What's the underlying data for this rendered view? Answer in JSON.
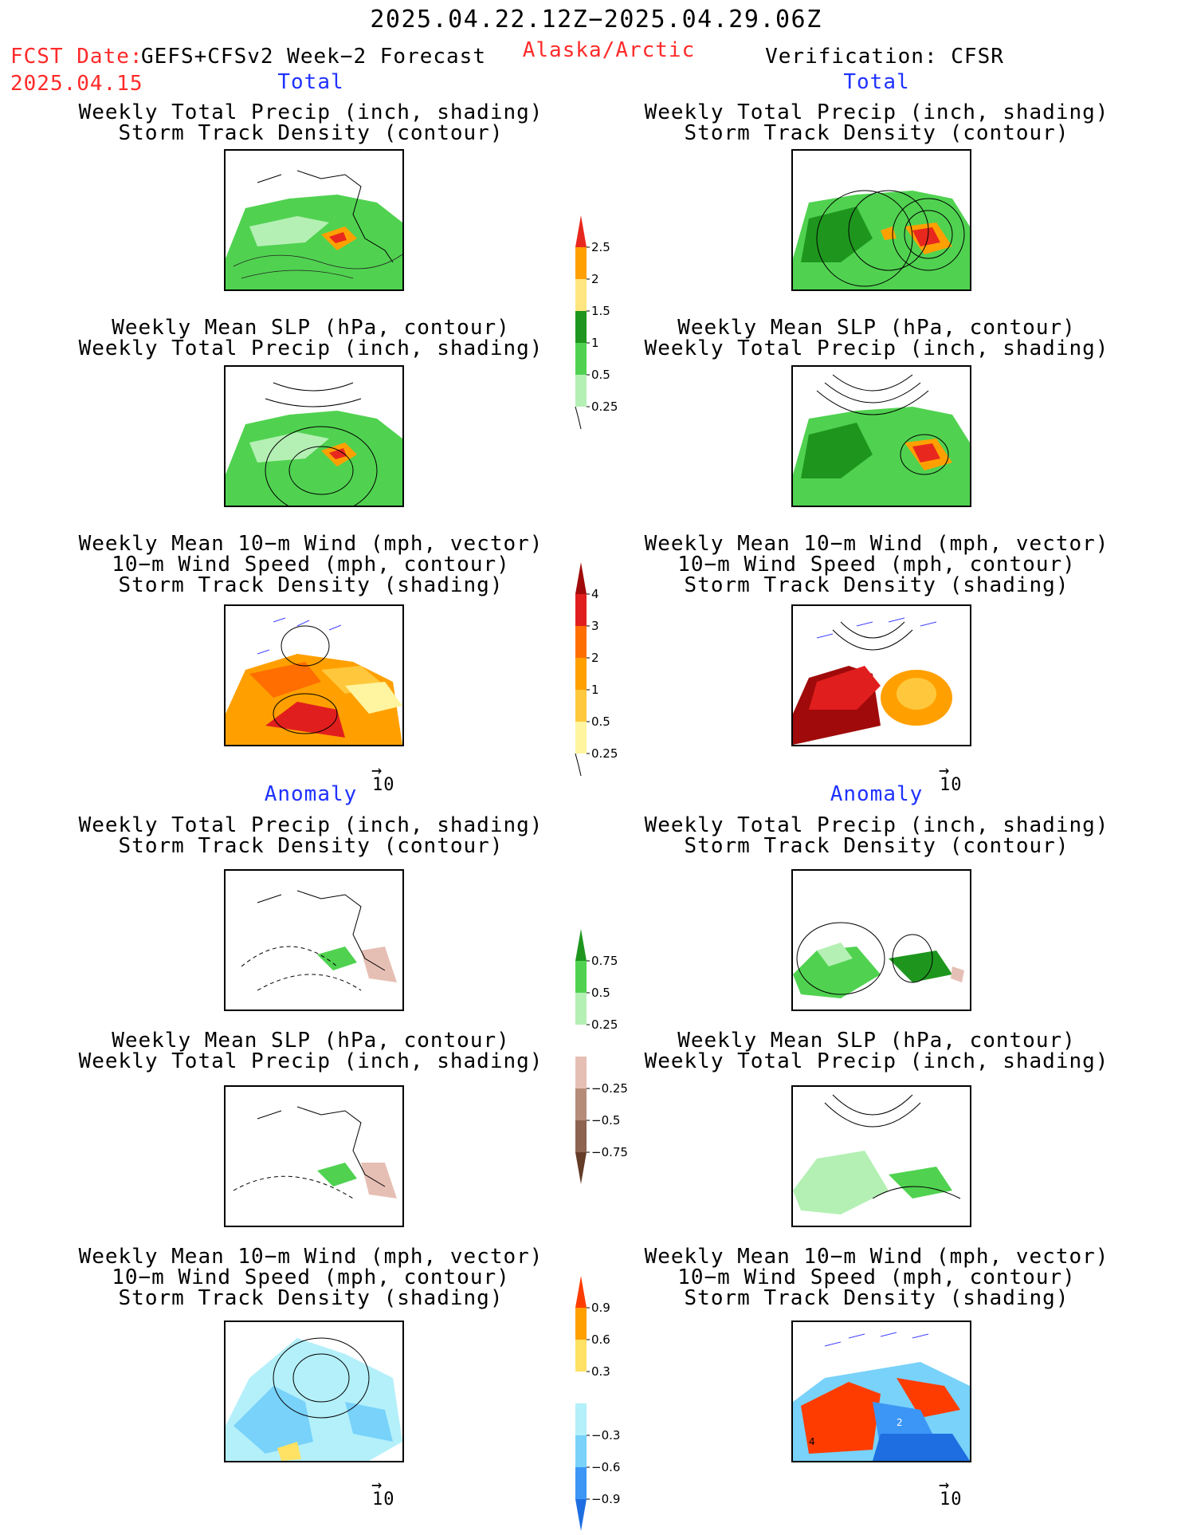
{
  "header": {
    "date_range": "2025.04.22.12Z−2025.04.29.06Z",
    "fcst_date_label": "FCST Date:",
    "forecast_name": "GEFS+CFSv2 Week−2 Forecast",
    "region": "Alaska/Arctic",
    "verification": "Verification: CFSR",
    "fcst_date": "2025.04.15"
  },
  "sections": {
    "total_label": "Total",
    "anomaly_label": "Anomaly"
  },
  "panel_titles": {
    "precip_storm": [
      "Weekly Total Precip (inch, shading)",
      "Storm Track Density (contour)"
    ],
    "slp_precip": [
      "Weekly Mean SLP (hPa, contour)",
      "Weekly Total Precip (inch, shading)"
    ],
    "wind_storm": [
      "Weekly Mean 10−m Wind (mph, vector)",
      "10−m Wind Speed (mph, contour)",
      "Storm Track Density (shading)"
    ]
  },
  "vector_reference": "10",
  "colorbars": {
    "precip_total": {
      "labels": [
        "2.5",
        "2",
        "1.5",
        "1",
        "0.5",
        "0.25"
      ],
      "colors": [
        "#e8281e",
        "#ffa000",
        "#ffe680",
        "#1e961e",
        "#50d250",
        "#b4f0b4"
      ]
    },
    "storm_total": {
      "labels": [
        "4",
        "3",
        "2",
        "1",
        "0.5",
        "0.25"
      ],
      "colors": [
        "#a00a0a",
        "#e11e1e",
        "#ff6e00",
        "#ffa000",
        "#ffc83c",
        "#fff5a0"
      ]
    },
    "precip_anom": {
      "labels": [
        "0.75",
        "0.5",
        "0.25",
        "−0.25",
        "−0.5",
        "−0.75"
      ],
      "colors": [
        "#1e961e",
        "#50d250",
        "#b4f0b4",
        "#ffffff",
        "#e6bfb4",
        "#b48c78",
        "#8c6450",
        "#643c28"
      ]
    },
    "storm_anom": {
      "labels": [
        "0.9",
        "0.6",
        "0.3",
        "−0.3",
        "−0.6",
        "−0.9"
      ],
      "colors": [
        "#ff3c00",
        "#ffa000",
        "#ffe164",
        "#ffffff",
        "#b4f0fa",
        "#78d2fa",
        "#3c96f5",
        "#1e6ee1"
      ]
    }
  },
  "panel_annotations": {
    "anom_wind_right_a": "4",
    "anom_wind_right_b": "2"
  }
}
